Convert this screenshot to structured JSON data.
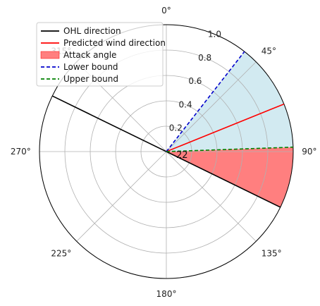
{
  "chart_data": {
    "type": "polar",
    "theta_zero_location": "N",
    "theta_direction": "clockwise",
    "rlim": [
      0,
      1.0
    ],
    "r_ticks": [
      0.2,
      0.4,
      0.6,
      0.8,
      1.0
    ],
    "r_tick_labels": [
      "0.2",
      "0.4",
      "0.6",
      "0.8",
      "1.0"
    ],
    "theta_ticks": [
      0,
      45,
      90,
      135,
      180,
      225,
      270,
      315
    ],
    "theta_tick_labels": [
      "0°",
      "45°",
      "90°",
      "135°",
      "180°",
      "225°",
      "270°",
      "315°"
    ],
    "grid": true,
    "center_annotation": "22",
    "series": [
      {
        "name": "OHL direction",
        "kind": "line",
        "style": "solid",
        "color": "#000000",
        "theta": [
          116,
          296
        ],
        "r": [
          1.0,
          1.0
        ]
      },
      {
        "name": "Predicted wind direction",
        "kind": "line",
        "style": "solid",
        "color": "#ff0000",
        "theta": [
          68
        ],
        "r": [
          1.0
        ]
      },
      {
        "name": "Attack angle",
        "kind": "wedge",
        "color": "#ff7f7f",
        "theta_start": 88,
        "theta_end": 116
      },
      {
        "name": "Lower bound",
        "kind": "line",
        "style": "dashed",
        "color": "#0000cc",
        "theta": [
          38
        ],
        "r": [
          1.0
        ]
      },
      {
        "name": "Upper bound",
        "kind": "line",
        "style": "dashed",
        "color": "#008000",
        "theta": [
          88
        ],
        "r": [
          1.0
        ]
      }
    ],
    "uncertainty_band": {
      "theta_start": 38,
      "theta_end": 88,
      "color": "#add8e6"
    },
    "legend": {
      "position": "top-left",
      "entries": [
        {
          "label": " OHL direction",
          "kind": "line",
          "style": "solid",
          "color": "#000000"
        },
        {
          "label": "Predicted wind direction",
          "kind": "line",
          "style": "solid",
          "color": "#ff0000"
        },
        {
          "label": "Attack angle",
          "kind": "patch",
          "color": "#ff7f7f"
        },
        {
          "label": "Lower bound",
          "kind": "line",
          "style": "dashed",
          "color": "#0000cc"
        },
        {
          "label": "Upper bound",
          "kind": "line",
          "style": "dashed",
          "color": "#008000"
        }
      ]
    }
  }
}
